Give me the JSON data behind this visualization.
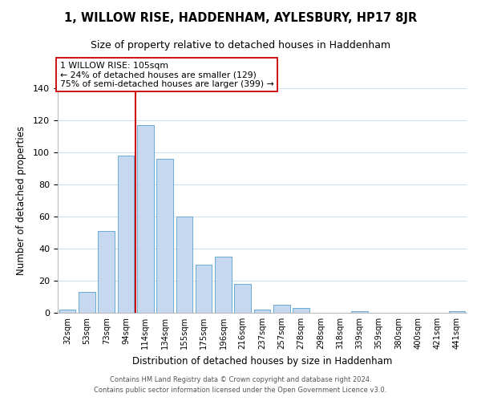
{
  "title": "1, WILLOW RISE, HADDENHAM, AYLESBURY, HP17 8JR",
  "subtitle": "Size of property relative to detached houses in Haddenham",
  "xlabel": "Distribution of detached houses by size in Haddenham",
  "ylabel": "Number of detached properties",
  "bar_labels": [
    "32sqm",
    "53sqm",
    "73sqm",
    "94sqm",
    "114sqm",
    "134sqm",
    "155sqm",
    "175sqm",
    "196sqm",
    "216sqm",
    "237sqm",
    "257sqm",
    "278sqm",
    "298sqm",
    "318sqm",
    "339sqm",
    "359sqm",
    "380sqm",
    "400sqm",
    "421sqm",
    "441sqm"
  ],
  "bar_values": [
    2,
    13,
    51,
    98,
    117,
    96,
    60,
    30,
    35,
    18,
    2,
    5,
    3,
    0,
    0,
    1,
    0,
    0,
    0,
    0,
    1
  ],
  "bar_color": "#c5d8f0",
  "bar_edge_color": "#6aaad4",
  "vline_x_index": 4,
  "vline_color": "#cc0000",
  "annotation_line1": "1 WILLOW RISE: 105sqm",
  "annotation_line2": "← 24% of detached houses are smaller (129)",
  "annotation_line3": "75% of semi-detached houses are larger (399) →",
  "annotation_box_color": "#ffffff",
  "annotation_box_edge": "#cc0000",
  "ylim": [
    0,
    140
  ],
  "yticks": [
    0,
    20,
    40,
    60,
    80,
    100,
    120,
    140
  ],
  "footer1": "Contains HM Land Registry data © Crown copyright and database right 2024.",
  "footer2": "Contains public sector information licensed under the Open Government Licence v3.0.",
  "background_color": "#ffffff",
  "grid_color": "#d0e0f0"
}
